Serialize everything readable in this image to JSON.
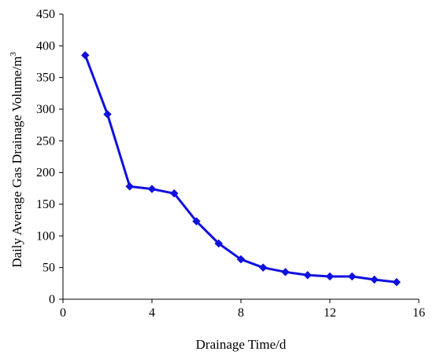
{
  "colors": {
    "series": "#1010e0",
    "axis": "#000000"
  },
  "chart_data": {
    "type": "line",
    "xlabel": "Drainage Time/d",
    "ylabel_main": "Daily Average Gas Drainage Volume/m",
    "ylabel_sup": "3",
    "xlim": [
      0,
      16
    ],
    "ylim": [
      0,
      450
    ],
    "xticks": [
      0,
      4,
      8,
      12,
      16
    ],
    "yticks": [
      0,
      50,
      100,
      150,
      200,
      250,
      300,
      350,
      400,
      450
    ],
    "grid": false,
    "marker": "diamond",
    "series": [
      {
        "x": [
          1,
          2,
          3,
          4,
          5,
          6,
          7,
          8,
          9,
          10,
          11,
          12,
          13,
          14,
          15
        ],
        "y": [
          385,
          292,
          178,
          174,
          167,
          123,
          88,
          63,
          50,
          43,
          38,
          36,
          36,
          31,
          27
        ]
      }
    ]
  }
}
